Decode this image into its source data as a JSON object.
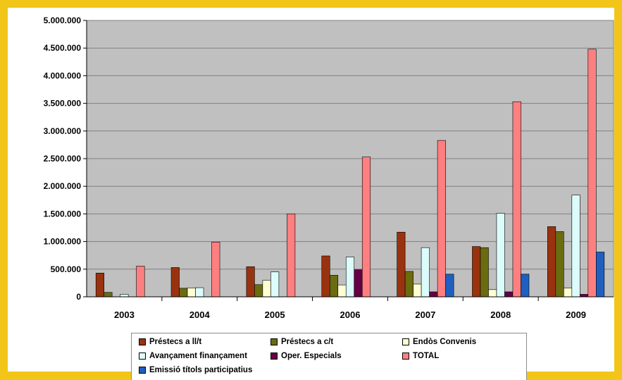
{
  "chart_data": {
    "type": "bar",
    "categories": [
      "2003",
      "2004",
      "2005",
      "2006",
      "2007",
      "2008",
      "2009"
    ],
    "ylim": [
      0,
      5000000
    ],
    "yticks": [
      0,
      500000,
      1000000,
      1500000,
      2000000,
      2500000,
      3000000,
      3500000,
      4000000,
      4500000,
      5000000
    ],
    "ytick_labels": [
      "0",
      "500.000",
      "1.000.000",
      "1.500.000",
      "2.000.000",
      "2.500.000",
      "3.000.000",
      "3.500.000",
      "4.000.000",
      "4.500.000",
      "5.000.000"
    ],
    "grid": true,
    "legend_position": "bottom",
    "series": [
      {
        "name": "Préstecs a ll/t",
        "color": "#99330f",
        "values": [
          430000,
          530000,
          545000,
          740000,
          1170000,
          910000,
          1270000
        ]
      },
      {
        "name": "Préstecs a c/t",
        "color": "#6b6b10",
        "values": [
          80000,
          155000,
          220000,
          390000,
          460000,
          890000,
          1180000
        ]
      },
      {
        "name": "Endòs Convenis",
        "color": "#ffffd4",
        "values": [
          0,
          160000,
          300000,
          215000,
          230000,
          130000,
          160000
        ]
      },
      {
        "name": "Avançament finançament",
        "color": "#dcfcfc",
        "values": [
          45000,
          165000,
          450000,
          720000,
          890000,
          1510000,
          1840000
        ]
      },
      {
        "name": "Oper. Especials",
        "color": "#660044",
        "values": [
          0,
          0,
          0,
          490000,
          90000,
          90000,
          45000
        ]
      },
      {
        "name": "TOTAL",
        "color": "#ff7f80",
        "values": [
          555000,
          990000,
          1500000,
          2530000,
          2830000,
          3530000,
          4480000
        ]
      },
      {
        "name": "Emissió títols participatius",
        "color": "#1f5fbf",
        "values": [
          0,
          0,
          0,
          0,
          410000,
          410000,
          810000
        ]
      }
    ]
  }
}
